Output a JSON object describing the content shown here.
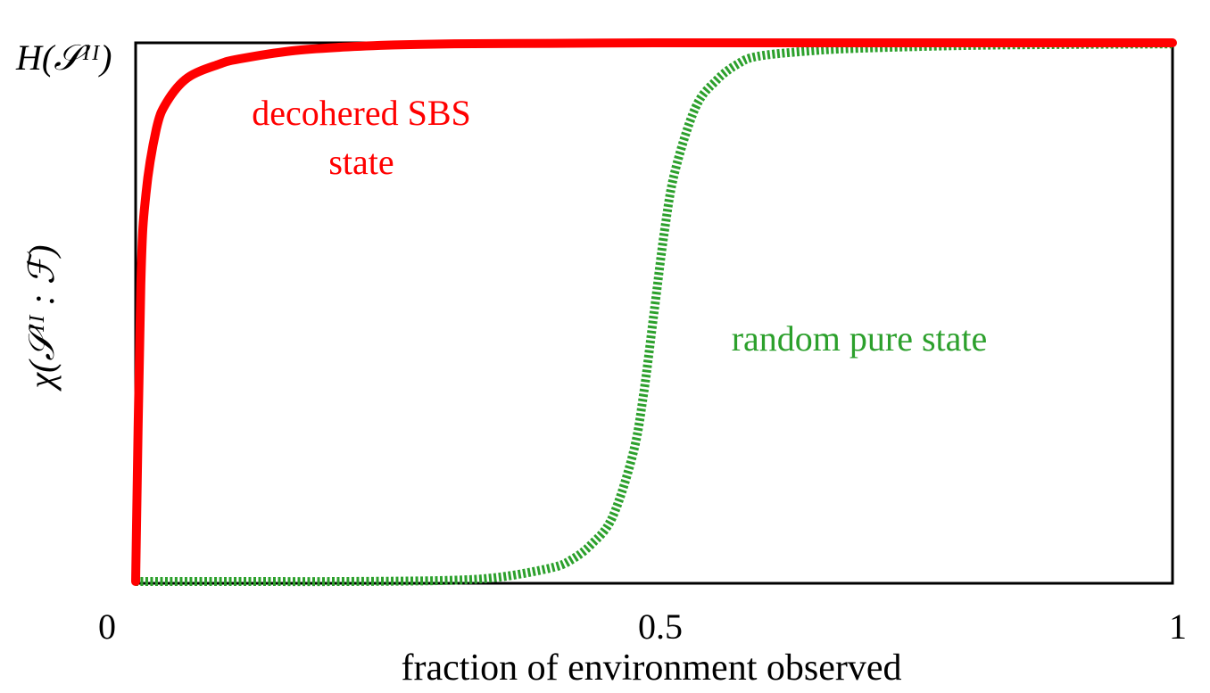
{
  "chart_data": {
    "type": "line",
    "xlabel": "fraction of environment observed",
    "ylabel": "χ(𝒮ᴵᴵ : ℱ)",
    "ytop_label": "H(𝒮ᴵᴵ)",
    "xlim": [
      0,
      1
    ],
    "ylim": [
      0,
      1
    ],
    "x_ticks": [
      "0",
      "0.5",
      "1"
    ],
    "grid": false,
    "legend": "none",
    "series": [
      {
        "name": "decohered SBS state",
        "color": "#ff0000",
        "style": "solid",
        "x": [
          0.0,
          0.005,
          0.01,
          0.02,
          0.03,
          0.05,
          0.08,
          0.1,
          0.15,
          0.2,
          0.25,
          0.3,
          0.4,
          0.5,
          0.6,
          0.8,
          1.0
        ],
        "y": [
          0.0,
          0.55,
          0.72,
          0.84,
          0.89,
          0.935,
          0.96,
          0.97,
          0.985,
          0.992,
          0.996,
          0.998,
          0.999,
          1.0,
          1.0,
          1.0,
          1.0
        ]
      },
      {
        "name": "random pure state",
        "color": "#2ca02c",
        "style": "dashed",
        "x": [
          0.0,
          0.1,
          0.2,
          0.3,
          0.35,
          0.4,
          0.42,
          0.44,
          0.46,
          0.48,
          0.49,
          0.5,
          0.51,
          0.52,
          0.54,
          0.56,
          0.58,
          0.6,
          0.65,
          0.7,
          0.8,
          0.9,
          1.0
        ],
        "y": [
          0.0,
          0.0,
          0.0,
          0.002,
          0.008,
          0.025,
          0.04,
          0.07,
          0.12,
          0.24,
          0.35,
          0.5,
          0.65,
          0.76,
          0.88,
          0.93,
          0.96,
          0.975,
          0.985,
          0.99,
          0.995,
          0.997,
          0.998
        ]
      }
    ],
    "annotations": [
      {
        "text_line1": "decohered SBS",
        "text_line2": "state",
        "color": "#ff0000"
      },
      {
        "text": "random pure state",
        "color": "#2ca02c"
      }
    ]
  }
}
